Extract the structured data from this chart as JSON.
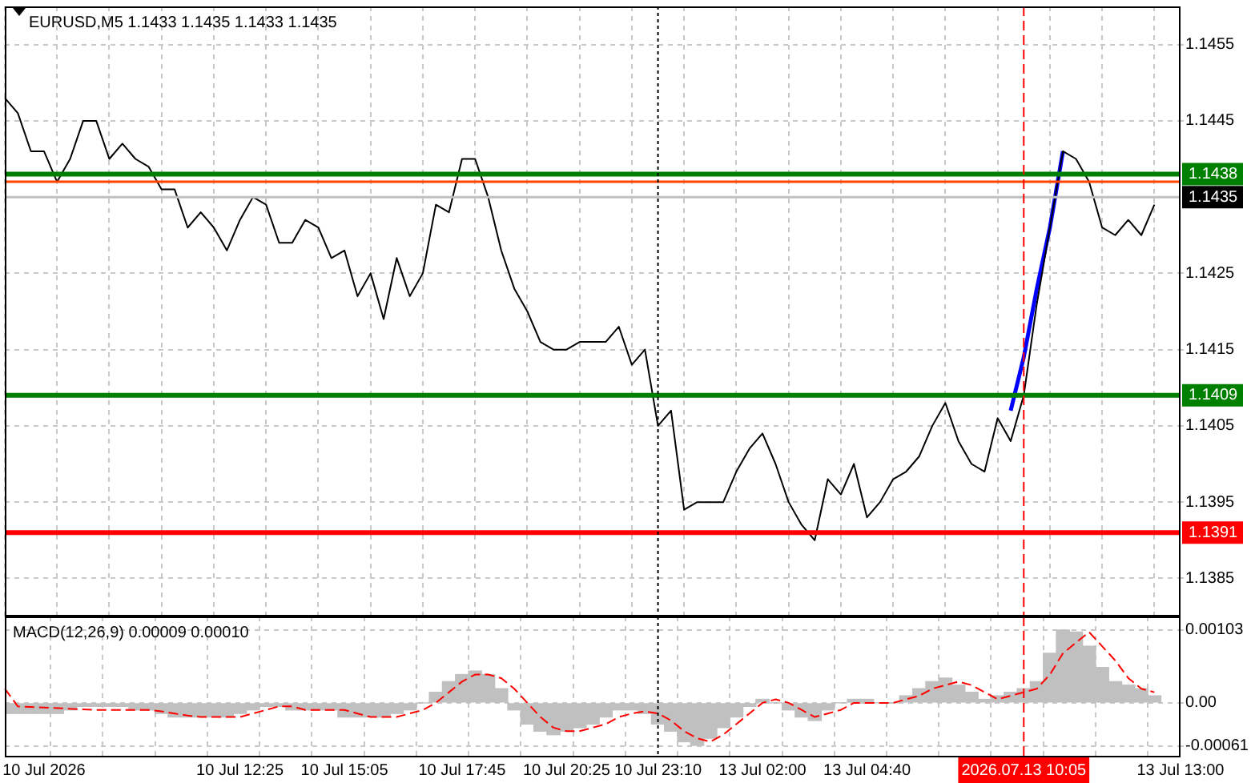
{
  "chart_data": [
    {
      "type": "line",
      "title": "EURUSD,M5 1.1433 1.1435 1.1433 1.1435",
      "categories": [
        null,
        null,
        null,
        "10 Jul 2026",
        null,
        null,
        null,
        null,
        null,
        null,
        null,
        null,
        null,
        null,
        null,
        null,
        null,
        null,
        "10 Jul 12:25",
        null,
        null,
        null,
        null,
        null,
        null,
        null,
        "10 Jul 15:05",
        null,
        null,
        null,
        null,
        null,
        null,
        null,
        null,
        "10 Jul 17:45",
        null,
        null,
        null,
        null,
        null,
        null,
        null,
        "10 Jul 20:25",
        null,
        null,
        null,
        null,
        null,
        null,
        "10 Jul 23:10",
        null,
        null,
        null,
        null,
        null,
        null,
        null,
        "13 Jul 02:00",
        null,
        null,
        null,
        null,
        null,
        null,
        null,
        "13 Jul 04:40",
        null,
        null,
        null,
        null,
        null,
        null,
        null,
        null,
        null,
        null,
        null,
        "2026.07.13 10:05",
        null,
        null,
        null,
        null,
        null,
        null,
        null,
        null,
        null,
        null,
        null,
        "13 Jul 13:00"
      ],
      "series": [
        {
          "color": "#000000",
          "values": [
            1.1448,
            1.1446,
            1.1441,
            1.1441,
            1.1437,
            1.144,
            1.1445,
            1.1445,
            1.144,
            1.1442,
            1.144,
            1.1439,
            1.1436,
            1.1436,
            1.1431,
            1.1433,
            1.1431,
            1.1428,
            1.1432,
            1.1435,
            1.1434,
            1.1429,
            1.1429,
            1.1432,
            1.1431,
            1.1427,
            1.1428,
            1.1422,
            1.1425,
            1.1419,
            1.1427,
            1.1422,
            1.1425,
            1.1434,
            1.1433,
            1.144,
            1.144,
            1.1435,
            1.1428,
            1.1423,
            1.142,
            1.1416,
            1.1415,
            1.1415,
            1.1416,
            1.1416,
            1.1416,
            1.1418,
            1.1413,
            1.1415,
            1.1405,
            1.1407,
            1.1394,
            1.1395,
            1.1395,
            1.1395,
            1.1399,
            1.1402,
            1.1404,
            1.14,
            1.1395,
            1.1392,
            1.139,
            1.1398,
            1.1396,
            1.14,
            1.1393,
            1.1395,
            1.1398,
            1.1399,
            1.1401,
            1.1405,
            1.1408,
            1.1403,
            1.14,
            1.1399,
            1.1406,
            1.1403,
            1.1409,
            1.1421,
            1.1431,
            1.1441,
            1.144,
            1.1437,
            1.1431,
            1.143,
            1.1432,
            1.143,
            1.1434,
            null,
            null
          ]
        },
        {
          "type": "line",
          "color": "#0000ff",
          "values": [
            null,
            null,
            null,
            null,
            null,
            null,
            null,
            null,
            null,
            null,
            null,
            null,
            null,
            null,
            null,
            null,
            null,
            null,
            null,
            null,
            null,
            null,
            null,
            null,
            null,
            null,
            null,
            null,
            null,
            null,
            null,
            null,
            null,
            null,
            null,
            null,
            null,
            null,
            null,
            null,
            null,
            null,
            null,
            null,
            null,
            null,
            null,
            null,
            null,
            null,
            null,
            null,
            null,
            null,
            null,
            null,
            null,
            null,
            null,
            null,
            null,
            null,
            null,
            null,
            null,
            null,
            null,
            null,
            null,
            null,
            null,
            null,
            null,
            null,
            null,
            null,
            null,
            1.1407,
            1.1414,
            1.1423,
            1.1431,
            1.1441,
            null,
            null,
            null,
            null,
            null,
            null,
            null,
            null,
            null
          ]
        }
      ],
      "ylim": [
        1.138,
        1.146
      ],
      "yticks": [
        1.1455,
        1.1445,
        1.1425,
        1.1415,
        1.1405,
        1.1395,
        1.1385
      ],
      "ref_lines": [
        {
          "axis": "y",
          "value": 1.1437,
          "color": "#ff4500"
        },
        {
          "axis": "y",
          "value": 1.1438,
          "label": "1.1438",
          "color": "#008000"
        },
        {
          "axis": "y",
          "value": 1.1435,
          "label": "1.1435",
          "color": "#c0c0c0"
        },
        {
          "axis": "y",
          "value": 1.1409,
          "label": "1.1409",
          "color": "#008000"
        },
        {
          "axis": "y",
          "value": 1.1391,
          "label": "1.1391",
          "color": "#ff0000"
        },
        {
          "axis": "x",
          "value": "10 Jul 23:10",
          "color": "#000000",
          "line_style": "dotted"
        },
        {
          "axis": "x",
          "value": "2026.07.13 10:05",
          "color": "#ff0000",
          "line_style": "dashed"
        }
      ],
      "grid": true,
      "legend": false,
      "marker": "none",
      "tick_labels": "y"
    },
    {
      "type": "bar",
      "title": "MACD(12,26,9) 0.00009 0.00010",
      "categories": [
        null,
        null,
        null,
        "10 Jul 2026",
        null,
        null,
        null,
        null,
        null,
        null,
        null,
        null,
        null,
        null,
        null,
        null,
        null,
        null,
        "10 Jul 12:25",
        null,
        null,
        null,
        null,
        null,
        null,
        null,
        "10 Jul 15:05",
        null,
        null,
        null,
        null,
        null,
        null,
        null,
        null,
        "10 Jul 17:45",
        null,
        null,
        null,
        null,
        null,
        null,
        null,
        "10 Jul 20:25",
        null,
        null,
        null,
        null,
        null,
        null,
        "10 Jul 23:10",
        null,
        null,
        null,
        null,
        null,
        null,
        null,
        "13 Jul 02:00",
        null,
        null,
        null,
        null,
        null,
        null,
        null,
        "13 Jul 04:40",
        null,
        null,
        null,
        null,
        null,
        null,
        null,
        null,
        null,
        null,
        null,
        "2026.07.13 10:05",
        null,
        null,
        null,
        null,
        null,
        null,
        null,
        null,
        null,
        null,
        null,
        "13 Jul 13:00"
      ],
      "series": [
        {
          "color": "#c0c0c0",
          "values": [
            -0.00015,
            -0.00015,
            -0.00015,
            -0.00015,
            -0.00015,
            -0.0001,
            -5e-05,
            -5e-05,
            -5e-05,
            -5e-05,
            -0.0001,
            -0.0001,
            -0.00015,
            -0.0002,
            -0.0002,
            -0.0002,
            -0.0002,
            -0.0002,
            -0.00015,
            -0.0001,
            -5e-05,
            -5e-05,
            -0.0001,
            -0.0001,
            -0.0001,
            -0.0001,
            -0.0002,
            -0.0002,
            -0.0002,
            -0.0002,
            -0.00015,
            -0.0001,
            0,
            0.00015,
            0.0003,
            0.0004,
            0.00045,
            0.0004,
            0.0002,
            -0.0001,
            -0.0003,
            -0.0004,
            -0.00045,
            -0.0004,
            -0.00035,
            -0.0003,
            -0.0002,
            -0.0001,
            -0.0001,
            -0.00015,
            -0.0003,
            -0.0004,
            -0.00055,
            -0.0006,
            -0.0005,
            -0.00035,
            -0.0002,
            -5e-05,
            5e-05,
            0,
            -0.0001,
            -0.0002,
            -0.00025,
            -0.0001,
            0,
            5e-05,
            5e-05,
            0,
            0,
            0.0001,
            0.0002,
            0.0003,
            0.00035,
            0.00025,
            0.00015,
            5e-05,
            0.0001,
            0.00015,
            0.0002,
            0.0003,
            0.0007,
            0.00103,
            0.001,
            0.0008,
            0.0005,
            0.0003,
            0.00025,
            0.0002,
            0.0001,
            null,
            null
          ]
        },
        {
          "type": "line",
          "color": "#ff0000",
          "line_style": "dashed",
          "values": [
            0.0002,
            -5e-05,
            null,
            null,
            null,
            null,
            null,
            -0.0001,
            -0.0001,
            -0.0001,
            -0.0001,
            -0.0001,
            -0.00012,
            -0.00015,
            -0.00018,
            -0.0002,
            -0.0002,
            -0.0002,
            -0.0002,
            -0.00015,
            -0.0001,
            -5e-05,
            -5e-05,
            -0.0001,
            -0.0001,
            -0.0001,
            -0.0001,
            -0.00015,
            -0.0002,
            -0.0002,
            -0.0002,
            -0.00015,
            -0.0001,
            0,
            0.00015,
            0.0003,
            0.0004,
            0.0004,
            0.00035,
            0.0002,
            0,
            -0.0002,
            -0.00035,
            -0.0004,
            -0.0004,
            -0.00035,
            -0.0003,
            -0.0002,
            -0.00015,
            -0.00012,
            -0.00015,
            -0.00025,
            -0.0004,
            -0.0005,
            -0.00055,
            -0.00045,
            -0.0003,
            -0.00015,
            0,
            5e-05,
            0,
            -0.0001,
            -0.0002,
            -0.00015,
            -0.0001,
            0,
            0,
            0,
            0,
            5e-05,
            0.0001,
            0.0002,
            0.00025,
            0.0003,
            0.00025,
            0.00015,
            5e-05,
            0.0001,
            0.00015,
            0.0002,
            0.0004,
            0.0007,
            0.00085,
            0.001,
            0.0008,
            0.0006,
            0.00035,
            0.0002,
            0.00015,
            null,
            null
          ]
        }
      ],
      "ylim": [
        -0.00077,
        0.00122
      ],
      "yticks": [
        0.00103,
        {
          "value": 0,
          "label": "0.00"
        },
        -0.00061
      ],
      "ref_lines": [
        {
          "axis": "x",
          "value": "10 Jul 23:10",
          "color": "#000000",
          "line_style": "dotted"
        },
        {
          "axis": "x",
          "value": "2026.07.13 10:05",
          "color": "#ff0000",
          "line_style": "dashed"
        }
      ],
      "grid": true,
      "legend": false,
      "marker": "none"
    }
  ]
}
